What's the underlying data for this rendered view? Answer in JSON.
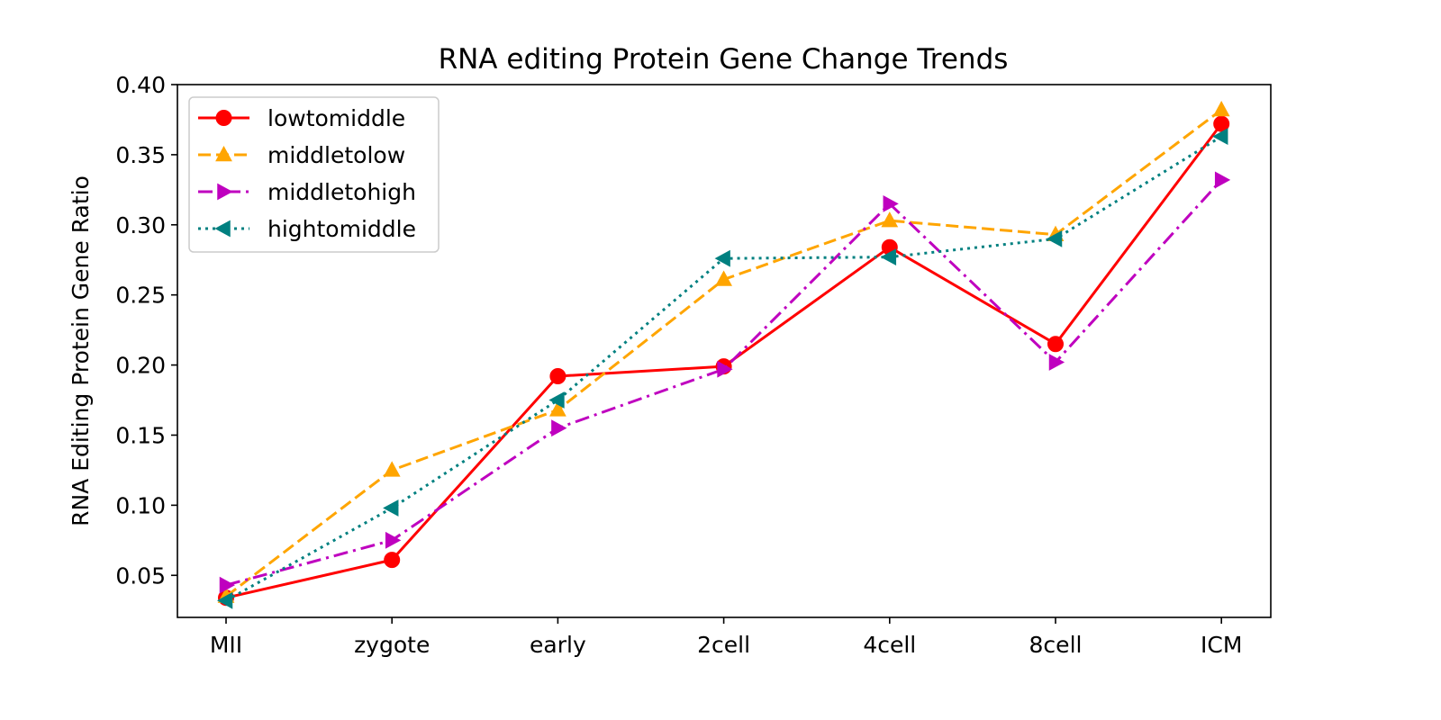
{
  "chart_data": {
    "type": "line",
    "title": "RNA editing Protein Gene Change Trends",
    "xlabel": "",
    "ylabel": "RNA Editing Protein Gene Ratio",
    "categories": [
      "MII",
      "zygote",
      "early",
      "2cell",
      "4cell",
      "8cell",
      "ICM"
    ],
    "ylim": [
      0.02,
      0.4
    ],
    "yticks": [
      0.05,
      0.1,
      0.15,
      0.2,
      0.25,
      0.3,
      0.35,
      0.4
    ],
    "ytick_labels": [
      "0.05",
      "0.10",
      "0.15",
      "0.20",
      "0.25",
      "0.30",
      "0.35",
      "0.40"
    ],
    "grid": false,
    "legend_position": "top-left",
    "series": [
      {
        "name": "lowtomiddle",
        "values": [
          0.034,
          0.061,
          0.192,
          0.199,
          0.284,
          0.215,
          0.372
        ],
        "color": "#ff0000",
        "linestyle": "solid",
        "marker": "circle"
      },
      {
        "name": "middletolow",
        "values": [
          0.035,
          0.125,
          0.168,
          0.261,
          0.303,
          0.293,
          0.382
        ],
        "color": "#ffa500",
        "linestyle": "dashed",
        "marker": "triangle-up"
      },
      {
        "name": "middletohigh",
        "values": [
          0.043,
          0.075,
          0.155,
          0.197,
          0.315,
          0.202,
          0.332
        ],
        "color": "#bf00bf",
        "linestyle": "dashdot",
        "marker": "triangle-right"
      },
      {
        "name": "hightomiddle",
        "values": [
          0.032,
          0.098,
          0.175,
          0.276,
          0.277,
          0.29,
          0.363
        ],
        "color": "#008080",
        "linestyle": "dotted",
        "marker": "triangle-left"
      }
    ]
  }
}
